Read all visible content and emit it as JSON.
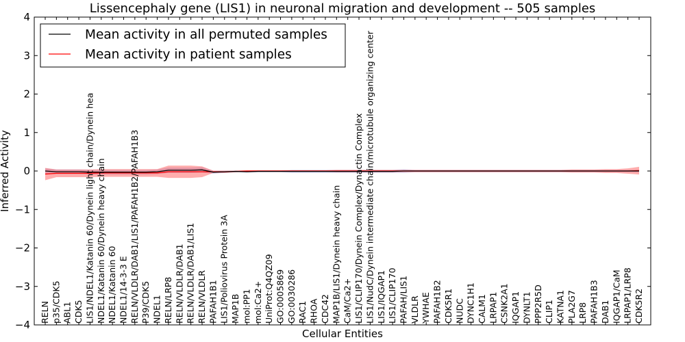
{
  "chart_data": {
    "type": "line",
    "title": "Lissencephaly gene (LIS1) in neuronal migration and development -- 505 samples",
    "xlabel": "Cellular Entities",
    "ylabel": "Inferred Activity",
    "ylim": [
      -4,
      4
    ],
    "yticks": [
      "−4",
      "−3",
      "−2",
      "−1",
      "0",
      "1",
      "2",
      "3",
      "4"
    ],
    "grid": false,
    "legend_position": "top-left",
    "categories": [
      "RELN",
      "p35/CDK5",
      "ABL1",
      "CDK5",
      "LIS1/NDEL1/Katanin 60/Dynein light chain/Dynein hea",
      "NDEL1/Katanin 60/Dynein heavy chain",
      "NDEL1/Katanin 60",
      "NDEL1/14-3-3 E",
      "RELN/VLDLR/DAB1/LIS1/PAFAH1B2/PAFAH1B3",
      "P39/CDK5",
      "NDEL1",
      "RELN/LRP8",
      "RELN/VLDLR/DAB1",
      "RELN/VLDLR/DAB1/LIS1",
      "RELN/VLDLR",
      "PAFAH1B1",
      "LIS1/Poliovirus Protein 3A",
      "MAP1B",
      "mol:PP1",
      "mol:Ca2+",
      "UniProt:Q4QZ09",
      "GO:0005869",
      "GO:0030286",
      "RAC1",
      "RHOA",
      "CDC42",
      "MAP1B/LIS1/Dynein heavy chain",
      "CaM/Ca2+",
      "LIS1/CLIP170/Dynein Complex/Dynactin Complex",
      "LIS1/NudC/Dynein intermediate chain/microtubule organizing center",
      "LIS1/IQGAP1",
      "LIS1/CLIP170",
      "PAFAH/LIS1",
      "VLDLR",
      "YWHAE",
      "PAFAH1B2",
      "CDK5R1",
      "NUDC",
      "DYNC1H1",
      "CALM1",
      "LRPAP1",
      "CSNK2A1",
      "IQGAP1",
      "DYNLT1",
      "PPP2R5D",
      "CLIP1",
      "KATNA1",
      "PLA2G7",
      "LRP8",
      "PAFAH1B3",
      "DAB1",
      "IQGAP1/CaM",
      "LRPAP1/LRP8",
      "CDK5R2"
    ],
    "series": [
      {
        "name": "Mean activity in all permuted samples",
        "color": "#000000",
        "values": [
          0.0,
          -0.02,
          -0.02,
          -0.02,
          -0.03,
          -0.03,
          -0.03,
          -0.03,
          -0.03,
          -0.03,
          -0.02,
          0.02,
          0.02,
          0.02,
          0.03,
          -0.03,
          -0.02,
          -0.01,
          -0.02,
          -0.01,
          -0.01,
          -0.01,
          -0.01,
          -0.01,
          -0.01,
          -0.01,
          -0.01,
          -0.01,
          -0.01,
          -0.01,
          -0.01,
          -0.01,
          0.0,
          0.0,
          0.0,
          0.0,
          0.0,
          0.0,
          0.0,
          0.0,
          0.0,
          0.0,
          0.0,
          0.0,
          0.0,
          0.0,
          0.0,
          0.0,
          0.0,
          0.0,
          0.0,
          0.0,
          0.0,
          0.0
        ],
        "band": [
          0.07,
          0.06,
          0.06,
          0.06,
          0.06,
          0.06,
          0.06,
          0.06,
          0.06,
          0.06,
          0.06,
          0.07,
          0.07,
          0.07,
          0.07,
          0.04,
          0.03,
          0.02,
          0.02,
          0.02,
          0.02,
          0.02,
          0.04,
          0.04,
          0.04,
          0.04,
          0.04,
          0.04,
          0.04,
          0.04,
          0.04,
          0.04,
          0.05,
          0.03,
          0.03,
          0.03,
          0.03,
          0.03,
          0.03,
          0.03,
          0.03,
          0.03,
          0.03,
          0.03,
          0.03,
          0.03,
          0.03,
          0.03,
          0.03,
          0.03,
          0.03,
          0.03,
          0.03,
          0.03
        ]
      },
      {
        "name": "Mean activity in patient samples",
        "color": "#ff0000",
        "values": [
          -0.08,
          -0.06,
          -0.06,
          -0.06,
          -0.06,
          -0.05,
          -0.05,
          -0.05,
          -0.05,
          -0.05,
          -0.05,
          -0.02,
          -0.02,
          -0.02,
          -0.02,
          -0.02,
          -0.02,
          -0.01,
          0.0,
          0.0,
          0.0,
          0.0,
          0.0,
          0.0,
          0.0,
          0.0,
          0.0,
          0.0,
          0.0,
          0.0,
          0.0,
          0.0,
          0.0,
          0.0,
          0.0,
          0.0,
          0.0,
          0.0,
          0.0,
          0.0,
          0.0,
          0.0,
          0.0,
          0.0,
          0.0,
          0.0,
          0.0,
          0.0,
          0.0,
          0.0,
          0.0,
          0.0,
          0.0,
          0.01
        ],
        "band": [
          0.16,
          0.1,
          0.1,
          0.1,
          0.1,
          0.1,
          0.1,
          0.1,
          0.1,
          0.1,
          0.1,
          0.16,
          0.16,
          0.16,
          0.14,
          0.03,
          0.03,
          0.02,
          0.02,
          0.02,
          0.02,
          0.02,
          0.02,
          0.02,
          0.02,
          0.02,
          0.03,
          0.03,
          0.03,
          0.03,
          0.03,
          0.03,
          0.03,
          0.03,
          0.03,
          0.03,
          0.03,
          0.03,
          0.03,
          0.03,
          0.03,
          0.03,
          0.03,
          0.03,
          0.03,
          0.03,
          0.03,
          0.04,
          0.04,
          0.04,
          0.05,
          0.05,
          0.07,
          0.1
        ]
      }
    ]
  }
}
